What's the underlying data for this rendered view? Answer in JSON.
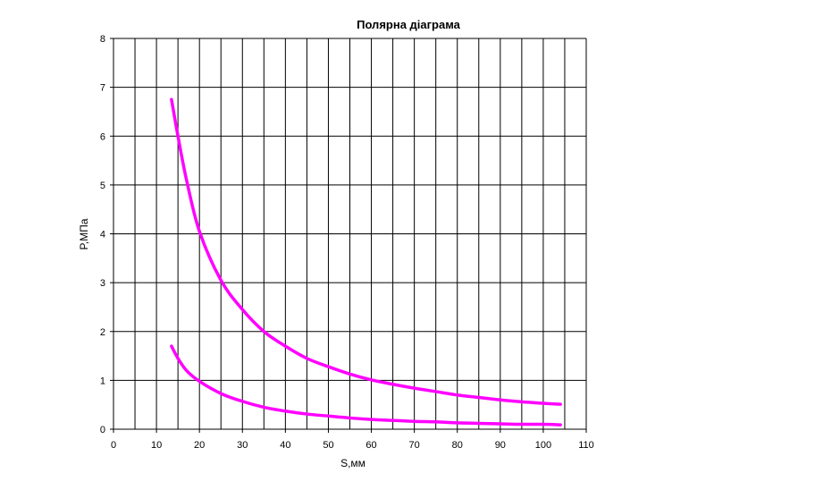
{
  "chart_data": {
    "type": "line",
    "title": "Полярна діаграма",
    "xlabel": "S,мм",
    "ylabel": "P,МПа",
    "xlim": [
      0,
      110
    ],
    "ylim": [
      0,
      8
    ],
    "xticks": [
      0,
      10,
      20,
      30,
      40,
      50,
      60,
      70,
      80,
      90,
      100,
      110
    ],
    "yticks": [
      0,
      1,
      2,
      3,
      4,
      5,
      6,
      7,
      8
    ],
    "grid": true,
    "legend": "none",
    "series": [
      {
        "color": "#ff00ff",
        "x": [
          13.5,
          15,
          17,
          20,
          25,
          30,
          35,
          40,
          45,
          50,
          55,
          60,
          65,
          70,
          75,
          80,
          85,
          90,
          95,
          100,
          104
        ],
        "y": [
          6.75,
          6.0,
          5.1,
          4.05,
          3.05,
          2.45,
          2.0,
          1.7,
          1.45,
          1.28,
          1.13,
          1.01,
          0.92,
          0.84,
          0.77,
          0.7,
          0.65,
          0.6,
          0.56,
          0.53,
          0.51
        ]
      },
      {
        "color": "#ff00ff",
        "x": [
          13.5,
          15,
          17,
          20,
          25,
          30,
          35,
          40,
          45,
          50,
          55,
          60,
          65,
          70,
          75,
          80,
          85,
          90,
          95,
          100,
          104
        ],
        "y": [
          1.7,
          1.45,
          1.2,
          0.98,
          0.73,
          0.57,
          0.45,
          0.37,
          0.31,
          0.27,
          0.23,
          0.2,
          0.18,
          0.16,
          0.15,
          0.13,
          0.12,
          0.11,
          0.1,
          0.1,
          0.09
        ]
      }
    ]
  }
}
